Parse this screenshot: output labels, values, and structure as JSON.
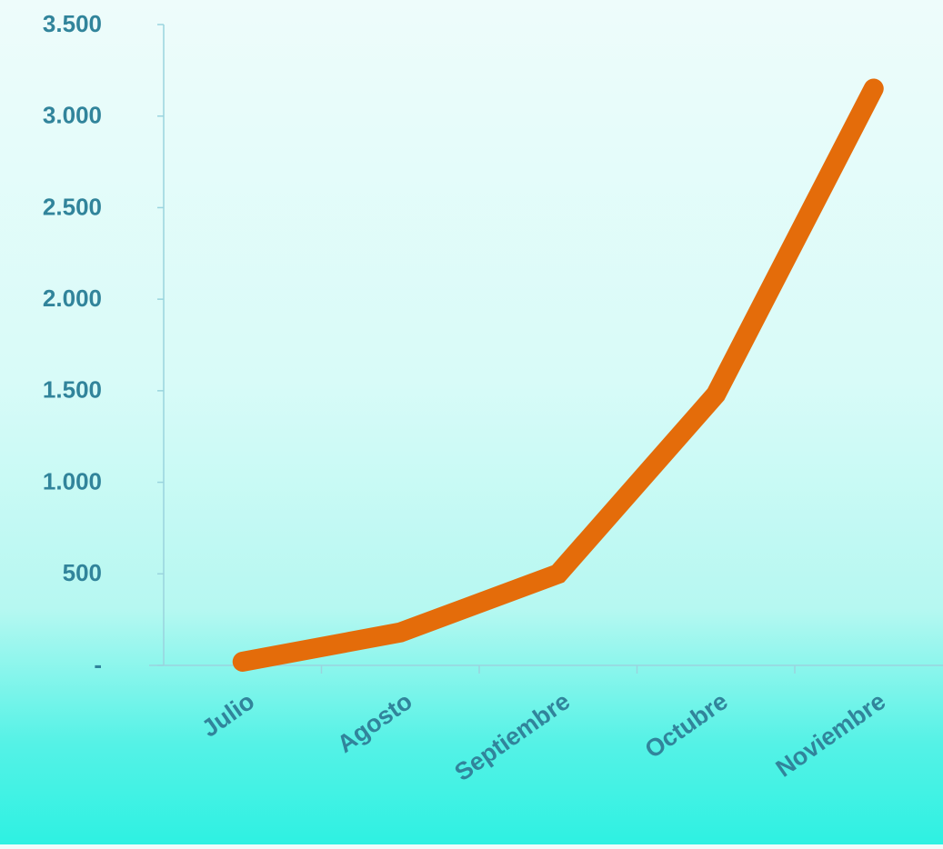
{
  "chart_data": {
    "type": "line",
    "title": "",
    "xlabel": "",
    "ylabel": "",
    "categories": [
      "Julio",
      "Agosto",
      "Septiembre",
      "Octubre",
      "Noviembre"
    ],
    "series": [
      {
        "values": [
          20,
          180,
          500,
          1480,
          3150
        ]
      }
    ],
    "ylim": [
      0,
      3500
    ],
    "yticks": [
      0,
      500,
      1000,
      1500,
      2000,
      2500,
      3000,
      3500
    ],
    "ytick_labels": [
      "-",
      "500",
      "1.000",
      "1.500",
      "2.000",
      "2.500",
      "3.000",
      "3.500"
    ],
    "grid": false,
    "legend": "none",
    "colors": {
      "line": "#e46c0a",
      "axis": "#9ad4de",
      "tick_text": "#31849b"
    }
  }
}
